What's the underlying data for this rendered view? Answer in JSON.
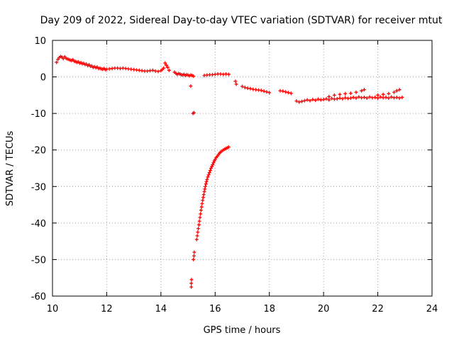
{
  "chart_data": {
    "type": "scatter",
    "title": "Day 209 of 2022, Sidereal Day-to-day VTEC variation (SDTVAR) for receiver mtut",
    "xlabel": "GPS time / hours",
    "ylabel": "SDTVAR / TECUs",
    "xlim": [
      10,
      24
    ],
    "ylim": [
      -60,
      10
    ],
    "xticks": [
      10,
      12,
      14,
      16,
      18,
      20,
      22,
      24
    ],
    "yticks": [
      10,
      0,
      -10,
      -20,
      -30,
      -40,
      -50,
      -60
    ],
    "xtick_labels": [
      "10",
      "12",
      "14",
      "16",
      "18",
      "20",
      "22",
      "24"
    ],
    "ytick_labels": [
      "10",
      "0",
      "-10",
      "-20",
      "-30",
      "-40",
      "-50",
      "-60"
    ],
    "grid": true,
    "marker": "+",
    "marker_color": "#ff0000",
    "series": [
      {
        "name": "main-band",
        "points": [
          [
            10.15,
            4.0
          ],
          [
            10.2,
            4.8
          ],
          [
            10.25,
            5.3
          ],
          [
            10.3,
            5.6
          ],
          [
            10.35,
            5.4
          ],
          [
            10.4,
            5.0
          ],
          [
            10.45,
            5.5
          ],
          [
            10.5,
            5.1
          ],
          [
            10.55,
            4.9
          ],
          [
            10.6,
            4.8
          ],
          [
            10.65,
            4.6
          ],
          [
            10.7,
            4.5
          ],
          [
            10.75,
            4.7
          ],
          [
            10.8,
            4.3
          ],
          [
            10.85,
            4.2
          ],
          [
            10.9,
            4.0
          ],
          [
            10.95,
            4.1
          ],
          [
            11.0,
            3.8
          ],
          [
            11.05,
            3.9
          ],
          [
            11.1,
            3.6
          ],
          [
            11.15,
            3.7
          ],
          [
            11.2,
            3.4
          ],
          [
            11.25,
            3.5
          ],
          [
            11.3,
            3.1
          ],
          [
            11.35,
            3.3
          ],
          [
            11.4,
            2.9
          ],
          [
            11.45,
            3.0
          ],
          [
            11.5,
            2.6
          ],
          [
            11.55,
            2.8
          ],
          [
            11.6,
            2.5
          ],
          [
            11.65,
            2.7
          ],
          [
            11.7,
            2.3
          ],
          [
            11.75,
            2.4
          ],
          [
            11.8,
            2.2
          ],
          [
            11.85,
            2.1
          ],
          [
            11.9,
            2.3
          ],
          [
            11.95,
            2.0
          ],
          [
            12.0,
            2.1
          ],
          [
            12.1,
            2.2
          ],
          [
            12.2,
            2.3
          ],
          [
            12.3,
            2.4
          ],
          [
            12.4,
            2.4
          ],
          [
            12.5,
            2.3
          ],
          [
            12.6,
            2.4
          ],
          [
            12.7,
            2.3
          ],
          [
            12.8,
            2.2
          ],
          [
            12.9,
            2.1
          ],
          [
            13.0,
            2.0
          ],
          [
            13.1,
            1.9
          ],
          [
            13.2,
            1.8
          ],
          [
            13.3,
            1.7
          ],
          [
            13.4,
            1.6
          ],
          [
            13.5,
            1.6
          ],
          [
            13.6,
            1.7
          ],
          [
            13.7,
            1.8
          ],
          [
            13.8,
            1.6
          ],
          [
            13.9,
            1.5
          ],
          [
            14.0,
            1.7
          ],
          [
            14.05,
            2.0
          ],
          [
            14.1,
            2.4
          ],
          [
            14.15,
            3.8
          ],
          [
            14.2,
            3.2
          ],
          [
            14.25,
            2.6
          ],
          [
            14.3,
            1.8
          ],
          [
            14.5,
            1.3
          ],
          [
            14.55,
            1.0
          ],
          [
            14.6,
            0.7
          ],
          [
            14.65,
            0.9
          ],
          [
            14.7,
            0.8
          ],
          [
            14.75,
            0.6
          ],
          [
            14.8,
            0.5
          ],
          [
            14.85,
            0.7
          ],
          [
            14.9,
            0.4
          ],
          [
            14.95,
            0.6
          ],
          [
            15.0,
            0.5
          ],
          [
            15.05,
            0.3
          ],
          [
            15.1,
            0.5
          ],
          [
            15.15,
            0.4
          ],
          [
            15.2,
            0.2
          ],
          [
            15.1,
            -2.5
          ],
          [
            15.18,
            -10.0
          ],
          [
            15.22,
            -9.8
          ],
          [
            15.6,
            0.4
          ],
          [
            15.7,
            0.5
          ],
          [
            15.8,
            0.6
          ],
          [
            15.9,
            0.6
          ],
          [
            16.0,
            0.7
          ],
          [
            16.1,
            0.8
          ],
          [
            16.2,
            0.8
          ],
          [
            16.3,
            0.7
          ],
          [
            16.4,
            0.8
          ],
          [
            16.5,
            0.7
          ],
          [
            16.75,
            -1.2
          ],
          [
            16.78,
            -2.0
          ],
          [
            17.0,
            -2.6
          ],
          [
            17.1,
            -2.9
          ],
          [
            17.2,
            -3.1
          ],
          [
            17.3,
            -3.2
          ],
          [
            17.4,
            -3.4
          ],
          [
            17.5,
            -3.5
          ],
          [
            17.6,
            -3.6
          ],
          [
            17.7,
            -3.7
          ],
          [
            17.8,
            -3.9
          ],
          [
            17.9,
            -4.1
          ],
          [
            18.0,
            -4.3
          ],
          [
            18.4,
            -3.8
          ],
          [
            18.5,
            -3.9
          ],
          [
            18.6,
            -4.1
          ],
          [
            18.7,
            -4.3
          ],
          [
            18.8,
            -4.5
          ],
          [
            19.0,
            -6.6
          ],
          [
            19.1,
            -6.9
          ],
          [
            19.2,
            -6.7
          ],
          [
            19.3,
            -6.5
          ],
          [
            19.4,
            -6.3
          ],
          [
            19.5,
            -6.5
          ],
          [
            19.6,
            -6.2
          ],
          [
            19.7,
            -6.4
          ],
          [
            19.8,
            -6.1
          ],
          [
            19.9,
            -6.3
          ],
          [
            20.0,
            -6.2
          ],
          [
            20.1,
            -6.0
          ],
          [
            20.2,
            -6.3
          ],
          [
            20.3,
            -5.9
          ],
          [
            20.4,
            -6.1
          ],
          [
            20.5,
            -6.0
          ],
          [
            20.6,
            -5.8
          ],
          [
            20.7,
            -6.0
          ],
          [
            20.8,
            -5.7
          ],
          [
            20.9,
            -5.9
          ],
          [
            21.0,
            -5.8
          ],
          [
            21.1,
            -5.6
          ],
          [
            21.2,
            -5.8
          ],
          [
            21.3,
            -5.5
          ],
          [
            21.4,
            -5.7
          ],
          [
            21.5,
            -5.6
          ],
          [
            21.6,
            -5.8
          ],
          [
            21.7,
            -5.5
          ],
          [
            21.8,
            -5.7
          ],
          [
            21.9,
            -5.6
          ],
          [
            22.0,
            -5.8
          ],
          [
            22.1,
            -5.5
          ],
          [
            22.2,
            -5.7
          ],
          [
            22.3,
            -5.6
          ],
          [
            22.4,
            -5.8
          ],
          [
            22.5,
            -5.5
          ],
          [
            22.6,
            -5.7
          ],
          [
            22.7,
            -5.6
          ],
          [
            22.8,
            -5.8
          ],
          [
            22.9,
            -5.6
          ],
          [
            20.2,
            -5.4
          ],
          [
            20.4,
            -5.0
          ],
          [
            20.6,
            -4.8
          ],
          [
            20.8,
            -4.6
          ],
          [
            21.0,
            -4.5
          ],
          [
            21.2,
            -4.2
          ],
          [
            21.4,
            -3.8
          ],
          [
            21.5,
            -3.5
          ],
          [
            22.0,
            -5.0
          ],
          [
            22.2,
            -4.8
          ],
          [
            22.4,
            -4.6
          ],
          [
            22.6,
            -4.2
          ],
          [
            22.7,
            -3.8
          ],
          [
            22.8,
            -3.5
          ]
        ]
      },
      {
        "name": "steep-drop",
        "points": [
          [
            15.12,
            -57.5
          ],
          [
            15.12,
            -56.5
          ],
          [
            15.13,
            -55.5
          ],
          [
            15.2,
            -50.0
          ],
          [
            15.22,
            -49.0
          ],
          [
            15.23,
            -48.0
          ],
          [
            15.32,
            -44.5
          ],
          [
            15.34,
            -43.5
          ],
          [
            15.36,
            -42.5
          ],
          [
            15.38,
            -41.5
          ],
          [
            15.4,
            -40.5
          ],
          [
            15.42,
            -39.5
          ],
          [
            15.44,
            -38.5
          ],
          [
            15.46,
            -37.5
          ],
          [
            15.48,
            -36.5
          ],
          [
            15.5,
            -35.6
          ],
          [
            15.52,
            -34.7
          ],
          [
            15.54,
            -33.8
          ],
          [
            15.56,
            -33.0
          ],
          [
            15.58,
            -32.2
          ],
          [
            15.6,
            -31.4
          ],
          [
            15.62,
            -30.7
          ],
          [
            15.64,
            -30.0
          ],
          [
            15.66,
            -29.3
          ],
          [
            15.68,
            -28.7
          ],
          [
            15.7,
            -28.1
          ],
          [
            15.73,
            -27.4
          ],
          [
            15.76,
            -26.8
          ],
          [
            15.79,
            -26.2
          ],
          [
            15.82,
            -25.6
          ],
          [
            15.85,
            -25.0
          ],
          [
            15.88,
            -24.5
          ],
          [
            15.91,
            -24.0
          ],
          [
            15.94,
            -23.5
          ],
          [
            15.97,
            -23.0
          ],
          [
            16.0,
            -22.6
          ],
          [
            16.04,
            -22.1
          ],
          [
            16.08,
            -21.7
          ],
          [
            16.12,
            -21.3
          ],
          [
            16.16,
            -20.9
          ],
          [
            16.2,
            -20.6
          ],
          [
            16.25,
            -20.3
          ],
          [
            16.3,
            -20.0
          ],
          [
            16.35,
            -19.8
          ],
          [
            16.4,
            -19.6
          ],
          [
            16.45,
            -19.4
          ],
          [
            16.5,
            -19.2
          ]
        ]
      }
    ]
  }
}
